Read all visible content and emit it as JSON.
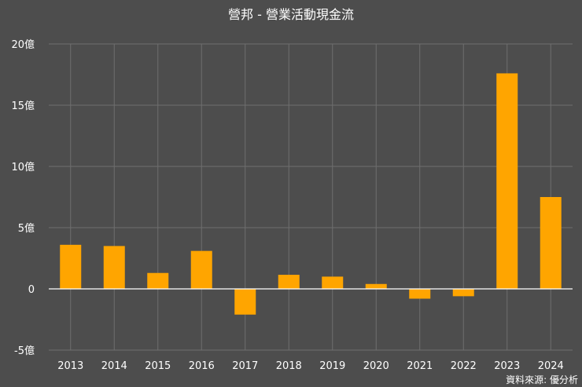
{
  "chart_data": {
    "type": "bar",
    "title": "營邦 - 營業活動現金流",
    "xlabel": "",
    "ylabel": "",
    "categories": [
      "2013",
      "2014",
      "2015",
      "2016",
      "2017",
      "2018",
      "2019",
      "2020",
      "2021",
      "2022",
      "2023",
      "2024"
    ],
    "series": [
      {
        "name": "營業活動現金流",
        "values": [
          3.6,
          3.5,
          1.3,
          3.1,
          -2.1,
          1.15,
          1.0,
          0.4,
          -0.8,
          -0.6,
          17.6,
          7.5
        ]
      }
    ],
    "ylim": [
      -5,
      20
    ],
    "yticks": [
      -5,
      0,
      5,
      10,
      15,
      20
    ],
    "ytick_labels": [
      "-5億",
      "0",
      "5億",
      "10億",
      "15億",
      "20億"
    ],
    "grid": true,
    "bar_color": "#ffa500",
    "background_color": "#4d4d4d",
    "grid_color": "#6e6e6e",
    "source": "資料來源: 優分析"
  }
}
